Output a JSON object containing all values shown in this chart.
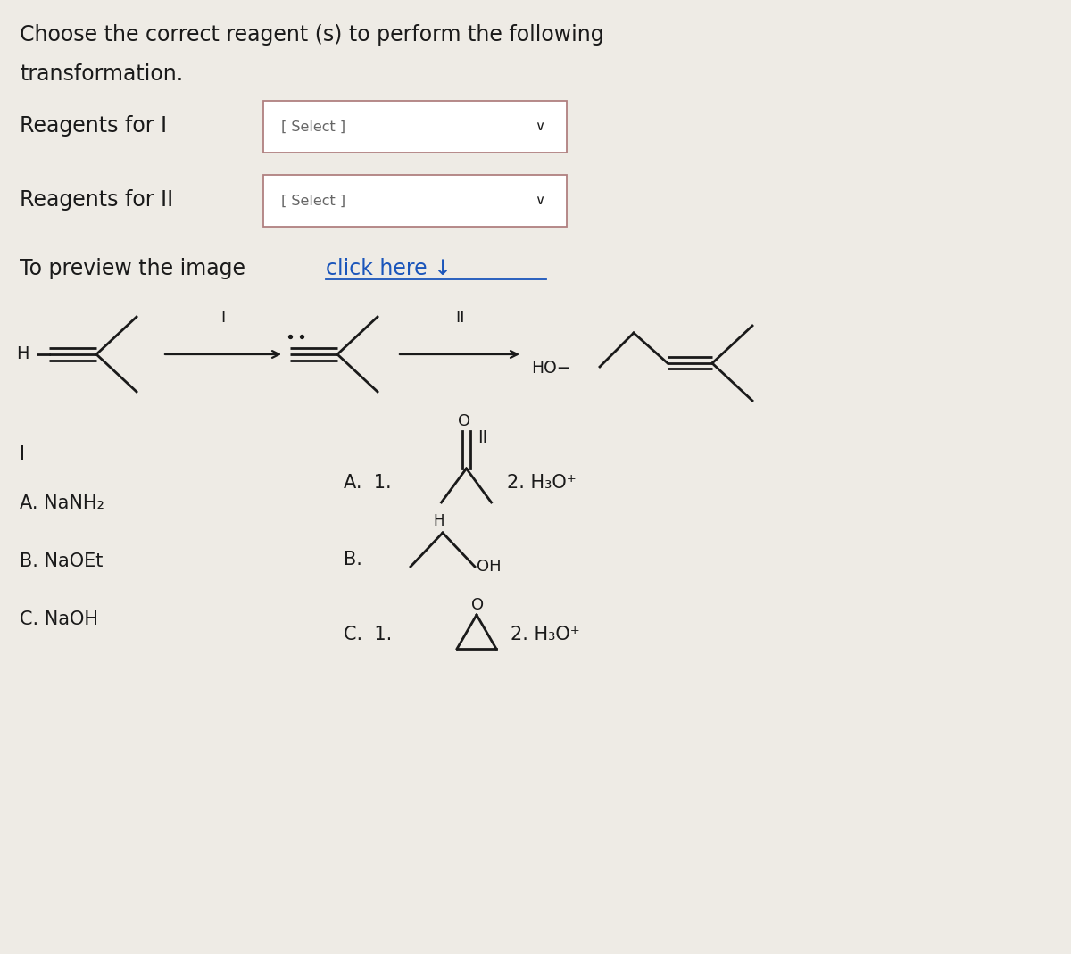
{
  "bg_color": "#eeebe5",
  "text_color": "#1a1a1a",
  "title_line1": "Choose the correct reagent (s) to perform the following",
  "title_line2": "transformation.",
  "reagent_I_label": "Reagents for I",
  "reagent_II_label": "Reagents for II",
  "select_text": "[ Select ]",
  "preview_prefix": "To preview the image ",
  "click_link": "click here ↓",
  "I_options": [
    "A. NaNH₂",
    "B. NaOEt",
    "C. NaOH"
  ],
  "h3o_plus": "2. H₃O⁺",
  "HO_label": "HO-"
}
